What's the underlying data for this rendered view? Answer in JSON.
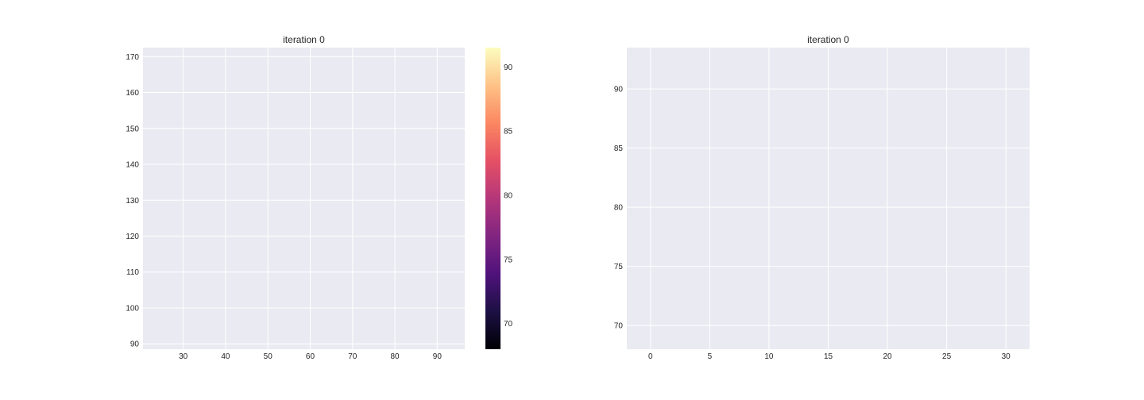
{
  "chart_data": [
    {
      "type": "scatter",
      "title": "iteration 0",
      "xlabel": "",
      "ylabel": "",
      "xlim": [
        20.5,
        96.5
      ],
      "ylim": [
        88.5,
        172.5
      ],
      "xticks": [
        30,
        40,
        50,
        60,
        70,
        80,
        90
      ],
      "yticks": [
        90,
        100,
        110,
        120,
        130,
        140,
        150,
        160,
        170
      ],
      "grid": true,
      "series": [],
      "colorbar": {
        "colormap": "magma",
        "range": [
          68,
          91.5
        ],
        "ticks": [
          70,
          75,
          80,
          85,
          90
        ],
        "colors": [
          "#000004",
          "#1c1044",
          "#4f127b",
          "#812581",
          "#b5367a",
          "#e55064",
          "#fb8761",
          "#fec287",
          "#fcfdbf"
        ]
      }
    },
    {
      "type": "line",
      "title": "iteration 0",
      "xlabel": "",
      "ylabel": "",
      "xlim": [
        -2,
        32
      ],
      "ylim": [
        68,
        93.5
      ],
      "xticks": [
        0,
        5,
        10,
        15,
        20,
        25,
        30
      ],
      "yticks": [
        70,
        75,
        80,
        85,
        90
      ],
      "grid": true,
      "series": []
    }
  ]
}
